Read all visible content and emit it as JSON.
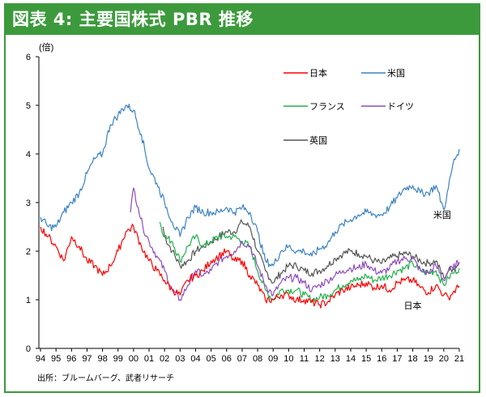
{
  "title": "図表 4: 主要国株式 PBR 推移",
  "source": "出所：ブルームバーグ、武者リサーチ",
  "colors": {
    "frame": "#3c9a3c",
    "日本": "#ff0000",
    "米国": "#3b82c4",
    "フランス": "#22b14c",
    "ドイツ": "#8e4cc0",
    "英国": "#555555"
  },
  "chart_data": {
    "type": "line",
    "ylabel": "(倍)",
    "ylim": [
      0,
      6
    ],
    "yticks": [
      "0",
      "1",
      "2",
      "3",
      "4",
      "5",
      "6"
    ],
    "xlim": [
      1994,
      2021
    ],
    "xticks": [
      "94",
      "95",
      "96",
      "97",
      "98",
      "99",
      "00",
      "01",
      "02",
      "03",
      "04",
      "05",
      "06",
      "07",
      "08",
      "09",
      "10",
      "11",
      "12",
      "13",
      "14",
      "15",
      "16",
      "17",
      "18",
      "19",
      "20",
      "21"
    ],
    "legend_placement": "top-center",
    "annotations": [
      {
        "text": "米国",
        "x": 2019.9,
        "y": 2.75,
        "series": "米国"
      },
      {
        "text": "日本",
        "x": 2018.0,
        "y": 0.88,
        "series": "日本"
      }
    ],
    "series": [
      {
        "name": "日本",
        "x": [
          1994.0,
          1994.5,
          1995.0,
          1995.5,
          1996.0,
          1996.5,
          1997.0,
          1997.5,
          1998.0,
          1998.5,
          1999.0,
          1999.5,
          2000.0,
          2000.5,
          2001.0,
          2001.5,
          2002.0,
          2002.5,
          2003.0,
          2003.5,
          2004.0,
          2004.5,
          2005.0,
          2005.5,
          2006.0,
          2006.5,
          2007.0,
          2007.5,
          2008.0,
          2008.5,
          2009.0,
          2009.5,
          2010.0,
          2010.5,
          2011.0,
          2011.5,
          2012.0,
          2012.5,
          2013.0,
          2013.5,
          2014.0,
          2014.5,
          2015.0,
          2015.5,
          2016.0,
          2016.5,
          2017.0,
          2017.5,
          2018.0,
          2018.5,
          2019.0,
          2019.5,
          2020.0,
          2020.3,
          2020.6,
          2021.0
        ],
        "y": [
          2.5,
          2.3,
          2.1,
          1.8,
          2.3,
          2.1,
          1.8,
          1.7,
          1.5,
          1.7,
          2.0,
          2.4,
          2.5,
          2.1,
          1.8,
          1.6,
          1.4,
          1.2,
          1.1,
          1.4,
          1.5,
          1.6,
          1.8,
          1.9,
          2.0,
          1.8,
          1.8,
          1.5,
          1.3,
          1.0,
          1.0,
          1.1,
          1.1,
          1.0,
          1.0,
          0.95,
          0.9,
          0.95,
          1.1,
          1.2,
          1.25,
          1.3,
          1.35,
          1.25,
          1.3,
          1.2,
          1.35,
          1.4,
          1.4,
          1.25,
          1.15,
          1.3,
          1.1,
          1.05,
          1.15,
          1.28
        ]
      },
      {
        "name": "米国",
        "x": [
          1994.0,
          1994.5,
          1995.0,
          1995.5,
          1996.0,
          1996.5,
          1997.0,
          1997.5,
          1998.0,
          1998.5,
          1999.0,
          1999.5,
          2000.0,
          2000.5,
          2001.0,
          2001.5,
          2002.0,
          2002.5,
          2003.0,
          2003.5,
          2004.0,
          2004.5,
          2005.0,
          2005.5,
          2006.0,
          2006.5,
          2007.0,
          2007.5,
          2008.0,
          2008.5,
          2009.0,
          2009.5,
          2010.0,
          2010.5,
          2011.0,
          2011.5,
          2012.0,
          2012.5,
          2013.0,
          2013.5,
          2014.0,
          2014.5,
          2015.0,
          2015.5,
          2016.0,
          2016.5,
          2017.0,
          2017.5,
          2018.0,
          2018.5,
          2019.0,
          2019.5,
          2020.0,
          2020.3,
          2020.6,
          2021.0
        ],
        "y": [
          2.7,
          2.5,
          2.5,
          2.8,
          3.0,
          3.2,
          3.6,
          3.9,
          4.0,
          4.6,
          4.8,
          5.0,
          4.9,
          4.4,
          3.7,
          3.4,
          3.0,
          2.6,
          2.3,
          2.7,
          2.9,
          2.8,
          2.8,
          2.8,
          2.9,
          2.8,
          2.9,
          2.8,
          2.4,
          1.8,
          1.7,
          2.0,
          2.1,
          2.0,
          2.0,
          1.9,
          2.05,
          2.15,
          2.4,
          2.55,
          2.65,
          2.75,
          2.8,
          2.75,
          2.75,
          2.9,
          3.1,
          3.3,
          3.35,
          3.2,
          3.2,
          3.35,
          2.85,
          3.3,
          3.8,
          4.1
        ]
      },
      {
        "name": "フランス",
        "x": [
          2001.7,
          2002.0,
          2002.5,
          2003.0,
          2003.5,
          2004.0,
          2004.5,
          2005.0,
          2005.5,
          2006.0,
          2006.5,
          2007.0,
          2007.5,
          2008.0,
          2008.5,
          2009.0,
          2009.5,
          2010.0,
          2010.5,
          2011.0,
          2011.5,
          2012.0,
          2012.5,
          2013.0,
          2013.5,
          2014.0,
          2014.5,
          2015.0,
          2015.5,
          2016.0,
          2016.5,
          2017.0,
          2017.5,
          2018.0,
          2018.5,
          2019.0,
          2019.5,
          2020.0,
          2020.3,
          2020.6,
          2021.0
        ],
        "y": [
          2.6,
          2.3,
          2.2,
          1.8,
          2.1,
          2.3,
          2.1,
          2.2,
          2.3,
          2.3,
          2.3,
          2.2,
          2.1,
          1.6,
          1.2,
          1.0,
          1.2,
          1.2,
          1.2,
          1.1,
          1.0,
          1.05,
          1.1,
          1.2,
          1.3,
          1.4,
          1.4,
          1.5,
          1.4,
          1.45,
          1.5,
          1.6,
          1.65,
          1.75,
          1.6,
          1.55,
          1.6,
          1.3,
          1.45,
          1.55,
          1.65
        ]
      },
      {
        "name": "ドイツ",
        "x": [
          1999.8,
          2000.0,
          2000.3,
          2000.6,
          2001.0,
          2001.5,
          2002.0,
          2002.5,
          2003.0,
          2003.5,
          2004.0,
          2004.5,
          2005.0,
          2005.5,
          2006.0,
          2006.5,
          2007.0,
          2007.5,
          2008.0,
          2008.5,
          2009.0,
          2009.5,
          2010.0,
          2010.5,
          2011.0,
          2011.5,
          2012.0,
          2012.5,
          2013.0,
          2013.5,
          2014.0,
          2014.5,
          2015.0,
          2015.5,
          2016.0,
          2016.5,
          2017.0,
          2017.5,
          2018.0,
          2018.5,
          2019.0,
          2019.5,
          2020.0,
          2020.3,
          2020.6,
          2021.0
        ],
        "y": [
          2.8,
          3.3,
          2.9,
          2.5,
          2.2,
          1.9,
          1.6,
          1.2,
          1.0,
          1.3,
          1.6,
          1.5,
          1.6,
          1.8,
          1.9,
          2.0,
          2.2,
          2.1,
          1.7,
          1.3,
          1.1,
          1.35,
          1.45,
          1.45,
          1.35,
          1.2,
          1.3,
          1.4,
          1.5,
          1.6,
          1.65,
          1.65,
          1.75,
          1.6,
          1.55,
          1.65,
          1.8,
          1.85,
          1.85,
          1.6,
          1.55,
          1.7,
          1.4,
          1.6,
          1.65,
          1.78
        ]
      },
      {
        "name": "英国",
        "x": [
          2001.9,
          2002.0,
          2002.5,
          2003.0,
          2003.5,
          2004.0,
          2004.5,
          2005.0,
          2005.5,
          2006.0,
          2006.5,
          2007.0,
          2007.5,
          2008.0,
          2008.5,
          2009.0,
          2009.5,
          2010.0,
          2010.5,
          2011.0,
          2011.5,
          2012.0,
          2012.5,
          2013.0,
          2013.5,
          2014.0,
          2014.5,
          2015.0,
          2015.5,
          2016.0,
          2016.5,
          2017.0,
          2017.5,
          2018.0,
          2018.5,
          2019.0,
          2019.5,
          2020.0,
          2020.3,
          2020.6,
          2021.0
        ],
        "y": [
          2.5,
          2.3,
          2.0,
          1.7,
          1.8,
          2.0,
          2.1,
          2.2,
          2.3,
          2.4,
          2.4,
          2.6,
          2.5,
          2.0,
          1.6,
          1.35,
          1.55,
          1.7,
          1.7,
          1.6,
          1.55,
          1.6,
          1.7,
          1.85,
          1.95,
          2.0,
          1.95,
          1.9,
          1.8,
          1.75,
          1.85,
          1.9,
          1.95,
          1.9,
          1.8,
          1.75,
          1.8,
          1.45,
          1.6,
          1.65,
          1.75
        ]
      }
    ]
  }
}
